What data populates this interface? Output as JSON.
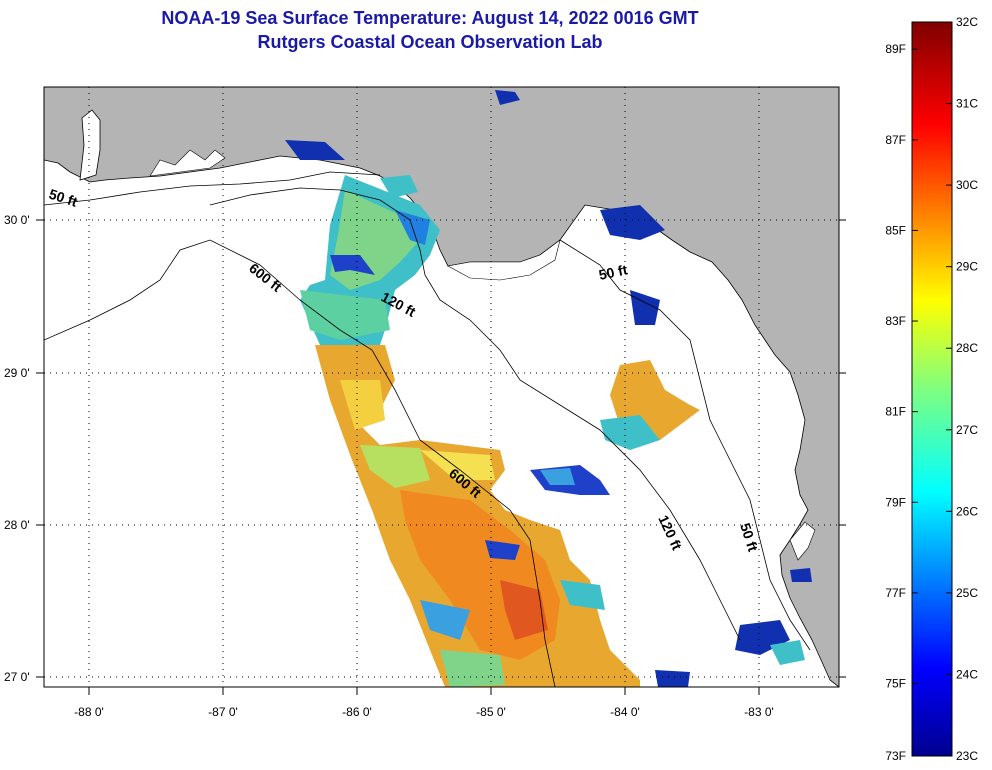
{
  "title": {
    "line1": "NOAA-19 Sea Surface Temperature:  August 14, 2022 0016 GMT",
    "line2": "Rutgers Coastal Ocean Observation Lab"
  },
  "colors": {
    "land": "#b4b4b4",
    "water_no_data": "#ffffff",
    "title": "#1a1aa6"
  },
  "map": {
    "lon_range": [
      -88.33,
      -82.42
    ],
    "lat_range": [
      26.96,
      30.85
    ],
    "lon_ticks": [
      "-88 0'",
      "-87 0'",
      "-86 0'",
      "-85 0'",
      "-84 0'",
      "-83 0'"
    ],
    "lat_ticks": [
      "30 0'",
      "29 0'",
      "28 0'",
      "27 0'"
    ],
    "contour_labels": [
      "50 ft",
      "600 ft",
      "120 ft",
      "50 ft",
      "600 ft",
      "120 ft",
      "50 ft"
    ]
  },
  "colorbar": {
    "fahrenheit": [
      "89F",
      "87F",
      "85F",
      "83F",
      "81F",
      "79F",
      "77F",
      "75F",
      "73F"
    ],
    "celsius": [
      "32C",
      "31C",
      "30C",
      "29C",
      "28C",
      "27C",
      "26C",
      "25C",
      "24C",
      "23C"
    ]
  }
}
